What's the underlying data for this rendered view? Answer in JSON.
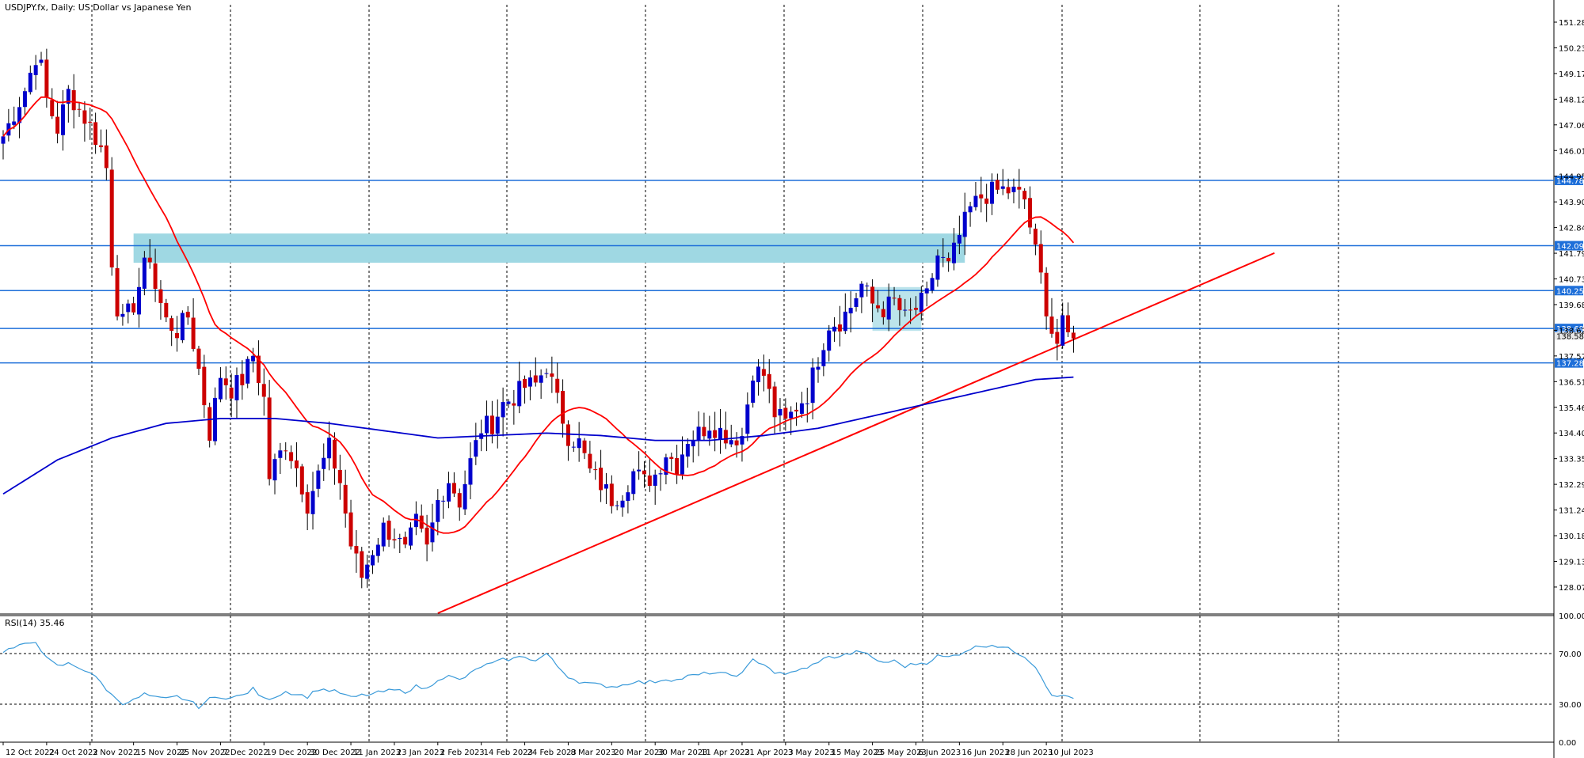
{
  "chart_data": [
    {
      "type": "candlestick",
      "title": "USDJPY.fx, Daily:  US Dollar vs Japanese Yen",
      "ylim": [
        127.0,
        152.0
      ],
      "y_ticks": [
        "151.285",
        "150.230",
        "149.175",
        "148.120",
        "147.065",
        "146.010",
        "144.955",
        "143.900",
        "142.845",
        "141.790",
        "140.735",
        "139.680",
        "138.625",
        "137.570",
        "136.515",
        "135.460",
        "134.405",
        "133.350",
        "132.295",
        "131.240",
        "130.185",
        "129.130",
        "128.075"
      ],
      "x_ticks": [
        "12 Oct 2022",
        "24 Oct 2022",
        "3 Nov 2022",
        "15 Nov 2022",
        "25 Nov 2022",
        "7 Dec 2022",
        "19 Dec 2022",
        "30 Dec 2022",
        "11 Jan 2023",
        "23 Jan 2023",
        "2 Feb 2023",
        "14 Feb 2023",
        "24 Feb 2023",
        "8 Mar 2023",
        "20 Mar 2023",
        "30 Mar 2023",
        "11 Apr 2023",
        "21 Apr 2023",
        "3 May 2023",
        "15 May 2023",
        "25 May 2023",
        "6 Jun 2023",
        "16 Jun 2023",
        "28 Jun 2023",
        "10 Jul 2023"
      ],
      "x_tick_bar_index": [
        0,
        8,
        16,
        24,
        32,
        40,
        48,
        56,
        64,
        72,
        80,
        88,
        96,
        104,
        112,
        120,
        128,
        136,
        144,
        152,
        160,
        168,
        176,
        184,
        192
      ],
      "horizontal_levels": [
        {
          "value": 144.784,
          "label": "144.784"
        },
        {
          "value": 142.099,
          "label": "142.099"
        },
        {
          "value": 140.255,
          "label": "140.255"
        },
        {
          "value": 138.698,
          "label": "138.698"
        },
        {
          "value": 137.284,
          "label": "137.284"
        }
      ],
      "secondary_price_label": "138.586",
      "resistance_zone": {
        "from": 141.4,
        "to": 142.6,
        "start_bar": 24,
        "end_bar": 177
      },
      "small_zone": {
        "from": 138.6,
        "to": 140.4,
        "start_bar": 160,
        "end_bar": 169
      },
      "trendline": {
        "start_bar": 80,
        "start_value": 127.0,
        "end_bar": 234,
        "end_value": 141.8
      },
      "ma_fast_label": "",
      "ma_slow_label": "",
      "key_closes": [
        [
          0,
          146.6
        ],
        [
          4,
          148.5
        ],
        [
          6,
          149.9
        ],
        [
          7,
          149.4
        ],
        [
          8,
          148.1
        ],
        [
          10,
          146.9
        ],
        [
          12,
          148.4
        ],
        [
          14,
          147.7
        ],
        [
          16,
          147.0
        ],
        [
          18,
          146.1
        ],
        [
          19,
          145.3
        ],
        [
          20,
          141.5
        ],
        [
          21,
          139.6
        ],
        [
          22,
          138.9
        ],
        [
          24,
          139.7
        ],
        [
          26,
          141.2
        ],
        [
          27,
          141.7
        ],
        [
          28,
          140.4
        ],
        [
          30,
          139.0
        ],
        [
          32,
          138.6
        ],
        [
          34,
          139.2
        ],
        [
          36,
          137.0
        ],
        [
          38,
          134.4
        ],
        [
          40,
          136.8
        ],
        [
          42,
          136.2
        ],
        [
          44,
          136.6
        ],
        [
          46,
          137.6
        ],
        [
          48,
          135.8
        ],
        [
          49,
          132.6
        ],
        [
          50,
          133.1
        ],
        [
          52,
          134.0
        ],
        [
          54,
          133.0
        ],
        [
          56,
          131.5
        ],
        [
          58,
          132.7
        ],
        [
          60,
          133.8
        ],
        [
          62,
          132.4
        ],
        [
          64,
          129.8
        ],
        [
          66,
          128.5
        ],
        [
          68,
          129.6
        ],
        [
          70,
          130.5
        ],
        [
          72,
          130.2
        ],
        [
          74,
          129.5
        ],
        [
          76,
          130.7
        ],
        [
          78,
          129.6
        ],
        [
          80,
          131.6
        ],
        [
          82,
          132.5
        ],
        [
          84,
          131.6
        ],
        [
          86,
          133.2
        ],
        [
          88,
          134.6
        ],
        [
          90,
          134.8
        ],
        [
          92,
          135.6
        ],
        [
          94,
          135.9
        ],
        [
          96,
          136.3
        ],
        [
          98,
          136.4
        ],
        [
          100,
          137.2
        ],
        [
          102,
          135.7
        ],
        [
          104,
          134.3
        ],
        [
          106,
          134.0
        ],
        [
          108,
          132.8
        ],
        [
          110,
          132.3
        ],
        [
          112,
          131.7
        ],
        [
          114,
          132.0
        ],
        [
          116,
          132.8
        ],
        [
          118,
          132.4
        ],
        [
          120,
          132.7
        ],
        [
          122,
          133.6
        ],
        [
          124,
          133.1
        ],
        [
          126,
          134.2
        ],
        [
          128,
          134.4
        ],
        [
          130,
          134.8
        ],
        [
          132,
          134.5
        ],
        [
          134,
          134.2
        ],
        [
          136,
          134.3
        ],
        [
          138,
          137.0
        ],
        [
          140,
          136.8
        ],
        [
          142,
          135.2
        ],
        [
          144,
          134.8
        ],
        [
          146,
          135.5
        ],
        [
          148,
          136.0
        ],
        [
          150,
          137.5
        ],
        [
          152,
          138.9
        ],
        [
          154,
          139.0
        ],
        [
          156,
          139.6
        ],
        [
          158,
          140.5
        ],
        [
          160,
          139.7
        ],
        [
          162,
          139.5
        ],
        [
          164,
          139.8
        ],
        [
          166,
          139.1
        ],
        [
          168,
          139.5
        ],
        [
          170,
          140.0
        ],
        [
          172,
          141.7
        ],
        [
          174,
          141.2
        ],
        [
          176,
          142.5
        ],
        [
          178,
          143.6
        ],
        [
          180,
          144.1
        ],
        [
          182,
          144.3
        ],
        [
          184,
          144.4
        ],
        [
          186,
          144.3
        ],
        [
          188,
          144.0
        ],
        [
          189,
          142.9
        ],
        [
          190,
          141.8
        ],
        [
          191,
          140.8
        ],
        [
          192,
          139.6
        ],
        [
          193,
          138.6
        ],
        [
          194,
          138.1
        ],
        [
          195,
          138.8
        ],
        [
          196,
          138.4
        ],
        [
          197,
          138.6
        ]
      ],
      "rsi": {
        "label": "RSI(14) 35.46",
        "ylim": [
          0,
          100
        ],
        "levels": [
          70,
          30
        ],
        "tick_labels": [
          "100.00",
          "70.00",
          "30.00",
          "0.00"
        ],
        "key_values": [
          [
            0,
            72
          ],
          [
            4,
            77
          ],
          [
            6,
            80
          ],
          [
            8,
            66
          ],
          [
            10,
            60
          ],
          [
            12,
            62
          ],
          [
            14,
            59
          ],
          [
            16,
            55
          ],
          [
            18,
            47
          ],
          [
            20,
            37
          ],
          [
            22,
            31
          ],
          [
            24,
            33
          ],
          [
            26,
            38
          ],
          [
            28,
            35
          ],
          [
            30,
            34
          ],
          [
            32,
            36
          ],
          [
            34,
            33
          ],
          [
            36,
            28
          ],
          [
            38,
            34
          ],
          [
            40,
            36
          ],
          [
            42,
            35
          ],
          [
            44,
            37
          ],
          [
            46,
            42
          ],
          [
            48,
            34
          ],
          [
            50,
            36
          ],
          [
            52,
            40
          ],
          [
            54,
            38
          ],
          [
            56,
            36
          ],
          [
            58,
            42
          ],
          [
            60,
            41
          ],
          [
            62,
            39
          ],
          [
            64,
            35
          ],
          [
            66,
            37
          ],
          [
            68,
            38
          ],
          [
            70,
            40
          ],
          [
            72,
            41
          ],
          [
            74,
            40
          ],
          [
            76,
            44
          ],
          [
            78,
            42
          ],
          [
            80,
            50
          ],
          [
            82,
            52
          ],
          [
            84,
            49
          ],
          [
            86,
            54
          ],
          [
            88,
            60
          ],
          [
            90,
            62
          ],
          [
            92,
            65
          ],
          [
            94,
            66
          ],
          [
            96,
            68
          ],
          [
            98,
            64
          ],
          [
            100,
            70
          ],
          [
            102,
            60
          ],
          [
            104,
            52
          ],
          [
            106,
            48
          ],
          [
            108,
            46
          ],
          [
            110,
            45
          ],
          [
            112,
            44
          ],
          [
            114,
            45
          ],
          [
            116,
            48
          ],
          [
            118,
            47
          ],
          [
            120,
            48
          ],
          [
            122,
            50
          ],
          [
            124,
            49
          ],
          [
            126,
            52
          ],
          [
            128,
            53
          ],
          [
            130,
            55
          ],
          [
            132,
            54
          ],
          [
            134,
            53
          ],
          [
            136,
            54
          ],
          [
            138,
            65
          ],
          [
            140,
            62
          ],
          [
            142,
            55
          ],
          [
            144,
            53
          ],
          [
            146,
            57
          ],
          [
            148,
            58
          ],
          [
            150,
            64
          ],
          [
            152,
            67
          ],
          [
            154,
            68
          ],
          [
            156,
            70
          ],
          [
            158,
            72
          ],
          [
            160,
            66
          ],
          [
            162,
            63
          ],
          [
            164,
            64
          ],
          [
            166,
            60
          ],
          [
            168,
            62
          ],
          [
            170,
            63
          ],
          [
            172,
            68
          ],
          [
            174,
            67
          ],
          [
            176,
            70
          ],
          [
            178,
            74
          ],
          [
            180,
            76
          ],
          [
            182,
            77
          ],
          [
            184,
            75
          ],
          [
            186,
            72
          ],
          [
            188,
            68
          ],
          [
            190,
            60
          ],
          [
            192,
            45
          ],
          [
            193,
            38
          ],
          [
            194,
            35
          ],
          [
            195,
            37
          ],
          [
            197,
            35.5
          ]
        ]
      }
    }
  ],
  "colors": {
    "bull": "#0000cc",
    "bear": "#cc0000",
    "ma_fast": "#ff0000",
    "ma_slow": "#0000cc",
    "level_line": "#1e6fd9",
    "zone": "#9fd8e3",
    "trendline": "#ff0000",
    "rsi_line": "#3a9ad9",
    "grid": "#000000"
  }
}
